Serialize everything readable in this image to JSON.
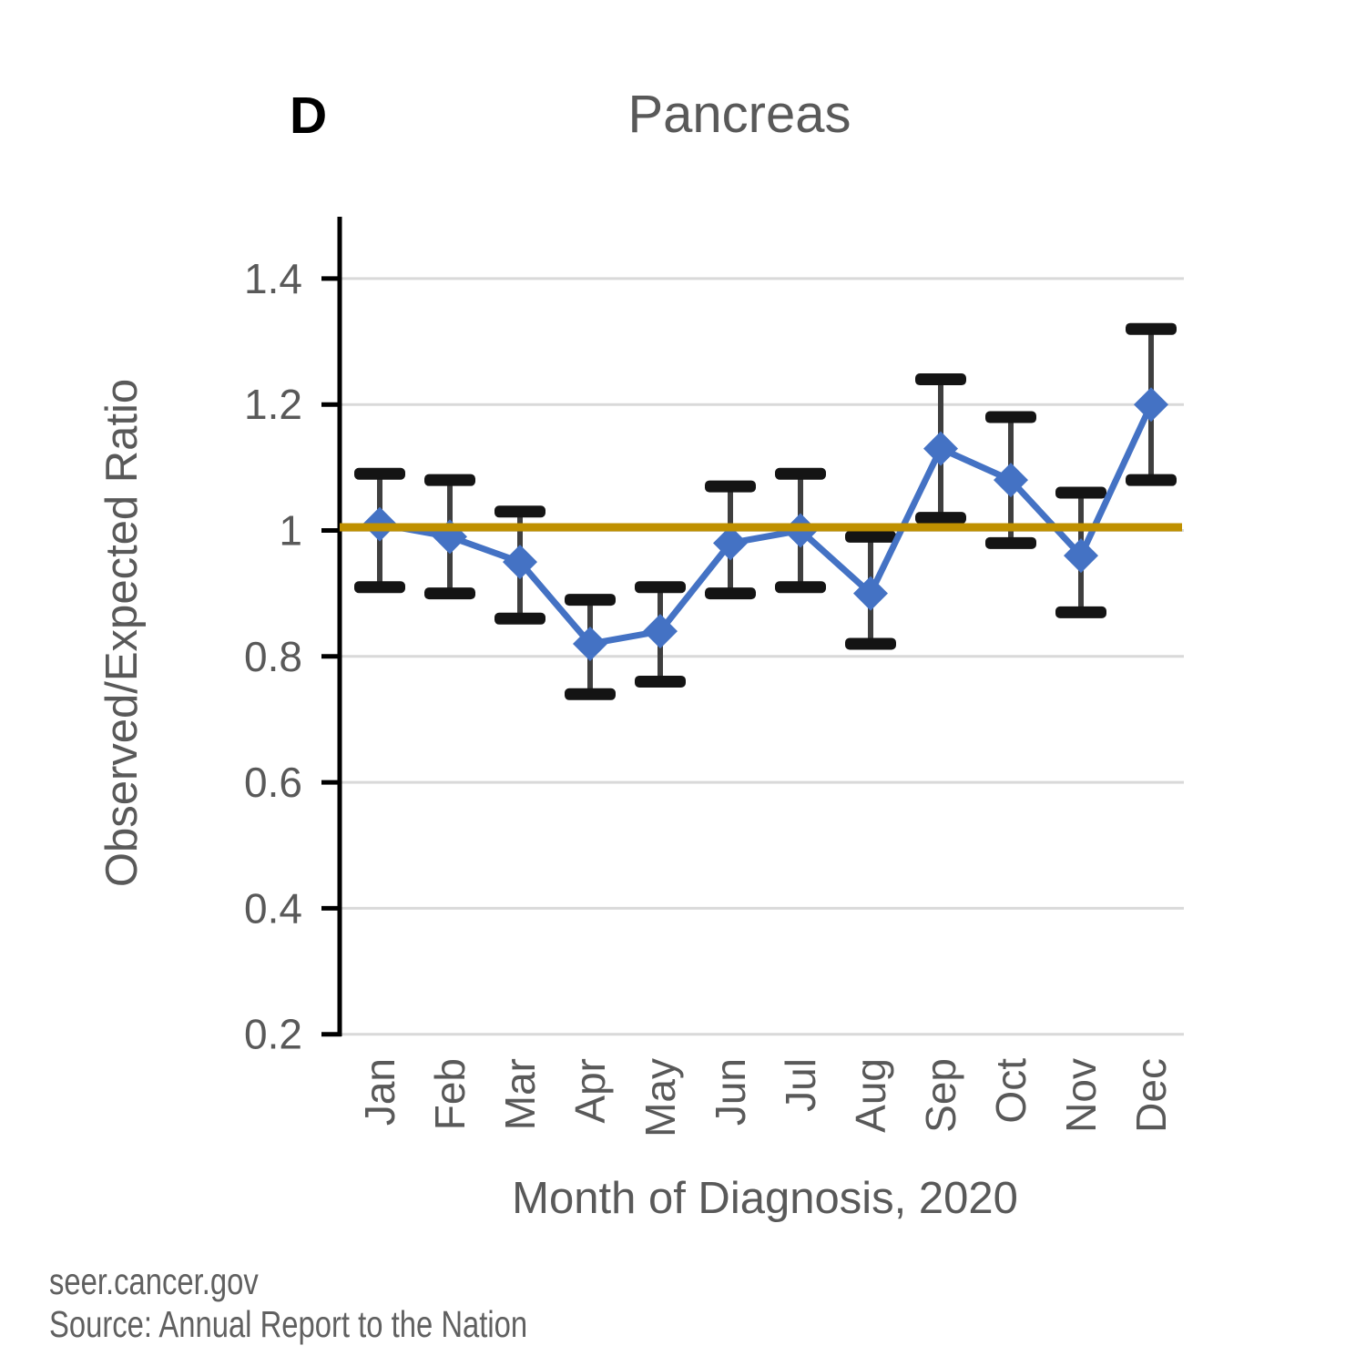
{
  "panel_label": "D",
  "footer": {
    "site": "seer.cancer.gov",
    "source": "Source: Annual Report to the Nation"
  },
  "chart_data": {
    "type": "line",
    "title": "Pancreas",
    "xlabel": "Month of Diagnosis, 2020",
    "ylabel": "Observed/Expected Ratio",
    "categories": [
      "Jan",
      "Feb",
      "Mar",
      "Apr",
      "May",
      "Jun",
      "Jul",
      "Aug",
      "Sep",
      "Oct",
      "Nov",
      "Dec"
    ],
    "series": [
      {
        "name": "Observed/Expected Ratio",
        "values": [
          1.01,
          0.99,
          0.95,
          0.82,
          0.84,
          0.98,
          1.0,
          0.9,
          1.13,
          1.08,
          0.96,
          1.2
        ],
        "ci_low": [
          0.91,
          0.9,
          0.86,
          0.74,
          0.76,
          0.9,
          0.91,
          0.82,
          1.02,
          0.98,
          0.87,
          1.08
        ],
        "ci_high": [
          1.09,
          1.08,
          1.03,
          0.89,
          0.91,
          1.07,
          1.09,
          0.99,
          1.24,
          1.18,
          1.06,
          1.32
        ]
      }
    ],
    "reference_line": 1,
    "ylim": [
      0.2,
      1.45
    ],
    "yticks": [
      1.4,
      1.2,
      1,
      0.8,
      0.6,
      0.4,
      0.2
    ],
    "grid": true,
    "legend_position": "none",
    "colors": {
      "series": "#4472C4",
      "reference_line": "#BF9000",
      "error_bar_line": "#3F3F3F",
      "error_bar_cap": "#141414",
      "gridline": "#D9D9D9",
      "axis": "#000000",
      "text": "#595959",
      "footer_text": "#606060"
    }
  }
}
